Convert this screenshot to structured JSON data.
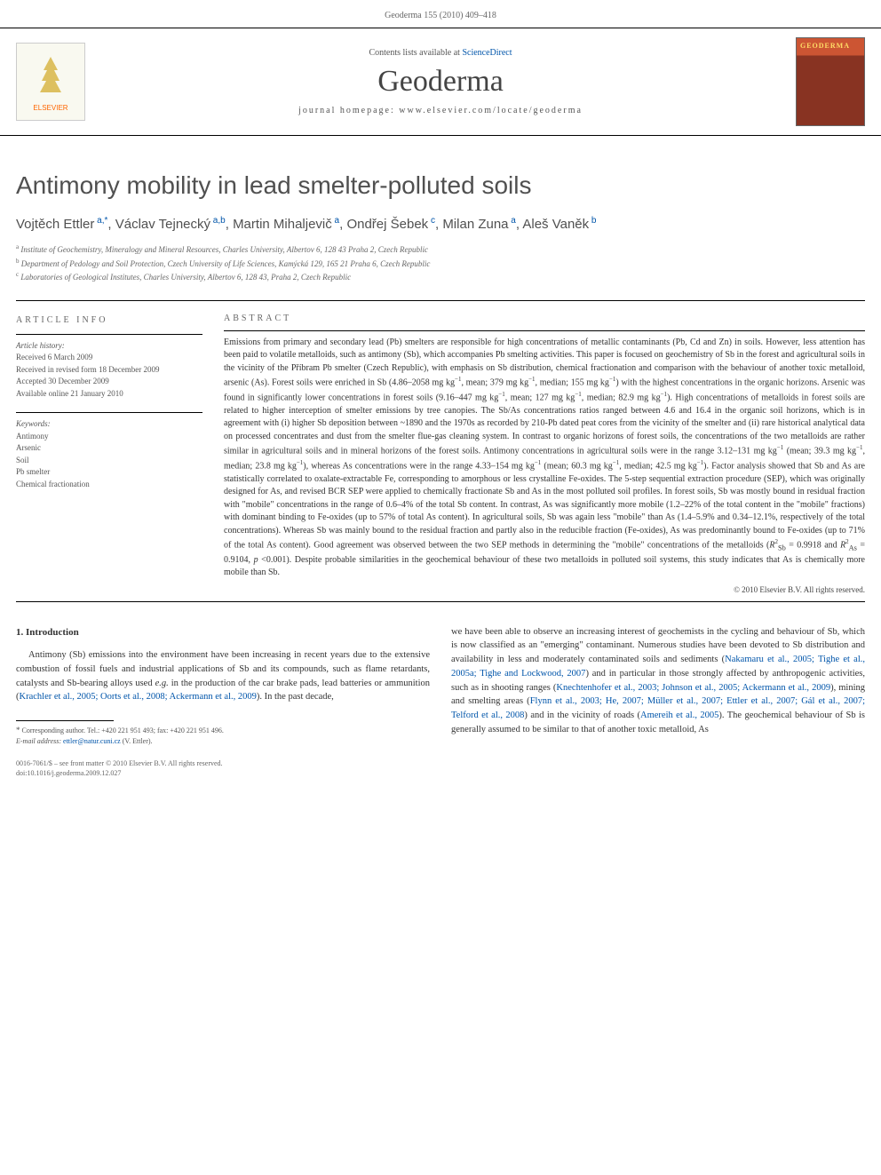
{
  "header": {
    "citation": "Geoderma 155 (2010) 409–418"
  },
  "banner": {
    "publisher_name": "ELSEVIER",
    "contents_prefix": "Contents lists available at ",
    "contents_link": "ScienceDirect",
    "journal_name": "Geoderma",
    "homepage_prefix": "journal homepage: ",
    "homepage_url": "www.elsevier.com/locate/geoderma",
    "cover_title": "GEODERMA"
  },
  "article": {
    "title": "Antimony mobility in lead smelter-polluted soils",
    "authors": [
      {
        "name": "Vojtěch Ettler",
        "sup": "a,*"
      },
      {
        "name": "Václav Tejnecký",
        "sup": "a,b"
      },
      {
        "name": "Martin Mihaljevič",
        "sup": "a"
      },
      {
        "name": "Ondřej Šebek",
        "sup": "c"
      },
      {
        "name": "Milan Zuna",
        "sup": "a"
      },
      {
        "name": "Aleš Vaněk",
        "sup": "b"
      }
    ],
    "affiliations": [
      {
        "sup": "a",
        "text": "Institute of Geochemistry, Mineralogy and Mineral Resources, Charles University, Albertov 6, 128 43 Praha 2, Czech Republic"
      },
      {
        "sup": "b",
        "text": "Department of Pedology and Soil Protection, Czech University of Life Sciences, Kamýcká 129, 165 21 Praha 6, Czech Republic"
      },
      {
        "sup": "c",
        "text": "Laboratories of Geological Institutes, Charles University, Albertov 6, 128 43, Praha 2, Czech Republic"
      }
    ]
  },
  "info": {
    "section_label": "ARTICLE INFO",
    "history_head": "Article history:",
    "history": [
      "Received 6 March 2009",
      "Received in revised form 18 December 2009",
      "Accepted 30 December 2009",
      "Available online 21 January 2010"
    ],
    "keywords_head": "Keywords:",
    "keywords": [
      "Antimony",
      "Arsenic",
      "Soil",
      "Pb smelter",
      "Chemical fractionation"
    ]
  },
  "abstract": {
    "section_label": "ABSTRACT",
    "text_html": "Emissions from primary and secondary lead (Pb) smelters are responsible for high concentrations of metallic contaminants (Pb, Cd and Zn) in soils. However, less attention has been paid to volatile metalloids, such as antimony (Sb), which accompanies Pb smelting activities. This paper is focused on geochemistry of Sb in the forest and agricultural soils in the vicinity of the Příbram Pb smelter (Czech Republic), with emphasis on Sb distribution, chemical fractionation and comparison with the behaviour of another toxic metalloid, arsenic (As). Forest soils were enriched in Sb (4.86–2058 mg kg<sup>−1</sup>, mean; 379 mg kg<sup>−1</sup>, median; 155 mg kg<sup>−1</sup>) with the highest concentrations in the organic horizons. Arsenic was found in significantly lower concentrations in forest soils (9.16–447 mg kg<sup>−1</sup>, mean; 127 mg kg<sup>−1</sup>, median; 82.9 mg kg<sup>−1</sup>). High concentrations of metalloids in forest soils are related to higher interception of smelter emissions by tree canopies. The Sb/As concentrations ratios ranged between 4.6 and 16.4 in the organic soil horizons, which is in agreement with (i) higher Sb deposition between ~1890 and the 1970s as recorded by 210-Pb dated peat cores from the vicinity of the smelter and (ii) rare historical analytical data on processed concentrates and dust from the smelter flue-gas cleaning system. In contrast to organic horizons of forest soils, the concentrations of the two metalloids are rather similar in agricultural soils and in mineral horizons of the forest soils. Antimony concentrations in agricultural soils were in the range 3.12–131 mg kg<sup>−1</sup> (mean; 39.3 mg kg<sup>−1</sup>, median; 23.8 mg kg<sup>−1</sup>), whereas As concentrations were in the range 4.33–154 mg kg<sup>−1</sup> (mean; 60.3 mg kg<sup>−1</sup>, median; 42.5 mg kg<sup>−1</sup>). Factor analysis showed that Sb and As are statistically correlated to oxalate-extractable Fe, corresponding to amorphous or less crystalline Fe-oxides. The 5-step sequential extraction procedure (SEP), which was originally designed for As, and revised BCR SEP were applied to chemically fractionate Sb and As in the most polluted soil profiles. In forest soils, Sb was mostly bound in residual fraction with \"mobile\" concentrations in the range of 0.6–4% of the total Sb content. In contrast, As was significantly more mobile (1.2–22% of the total content in the \"mobile\" fractions) with dominant binding to Fe-oxides (up to 57% of total As content). In agricultural soils, Sb was again less \"mobile\" than As (1.4–5.9% and 0.34–12.1%, respectively of the total concentrations). Whereas Sb was mainly bound to the residual fraction and partly also in the reducible fraction (Fe-oxides), As was predominantly bound to Fe-oxides (up to 71% of the total As content). Good agreement was observed between the two SEP methods in determining the \"mobile\" concentrations of the metalloids (<i>R</i><sup>2</sup><sub>Sb</sub> = 0.9918 and <i>R</i><sup>2</sup><sub>As</sub> = 0.9104, <i>p</i> &lt;0.001). Despite probable similarities in the geochemical behaviour of these two metalloids in polluted soil systems, this study indicates that As is chemically more mobile than Sb.",
    "copyright": "© 2010 Elsevier B.V. All rights reserved."
  },
  "body": {
    "heading": "1. Introduction",
    "col1_html": "Antimony (Sb) emissions into the environment have been increasing in recent years due to the extensive combustion of fossil fuels and industrial applications of Sb and its compounds, such as flame retardants, catalysts and Sb-bearing alloys used <i>e.g.</i> in the production of the car brake pads, lead batteries or ammunition (<span class=\"ref-link\">Krachler et al., 2005; Oorts et al., 2008; Ackermann et al., 2009</span>). In the past decade,",
    "col2_html": "we have been able to observe an increasing interest of geochemists in the cycling and behaviour of Sb, which is now classified as an \"emerging\" contaminant. Numerous studies have been devoted to Sb distribution and availability in less and moderately contaminated soils and sediments (<span class=\"ref-link\">Nakamaru et al., 2005; Tighe et al., 2005a; Tighe and Lockwood, 2007</span>) and in particular in those strongly affected by anthropogenic activities, such as in shooting ranges (<span class=\"ref-link\">Knechtenhofer et al., 2003; Johnson et al., 2005; Ackermann et al., 2009</span>), mining and smelting areas (<span class=\"ref-link\">Flynn et al., 2003; He, 2007; Müller et al., 2007; Ettler et al., 2007; Gál et al., 2007; Telford et al., 2008</span>) and in the vicinity of roads (<span class=\"ref-link\">Amereih et al., 2005</span>). The geochemical behaviour of Sb is generally assumed to be similar to that of another toxic metalloid, As"
  },
  "footnote": {
    "corr_line": "Corresponding author. Tel.: +420 221 951 493; fax: +420 221 951 496.",
    "email_label": "E-mail address:",
    "email": "ettler@natur.cuni.cz",
    "email_name": "(V. Ettler)."
  },
  "bottom": {
    "line1": "0016-7061/$ – see front matter © 2010 Elsevier B.V. All rights reserved.",
    "line2": "doi:10.1016/j.geoderma.2009.12.027"
  },
  "colors": {
    "link": "#0055aa",
    "text": "#333333",
    "muted": "#666666",
    "heading": "#505050",
    "orange": "#ff6600"
  }
}
